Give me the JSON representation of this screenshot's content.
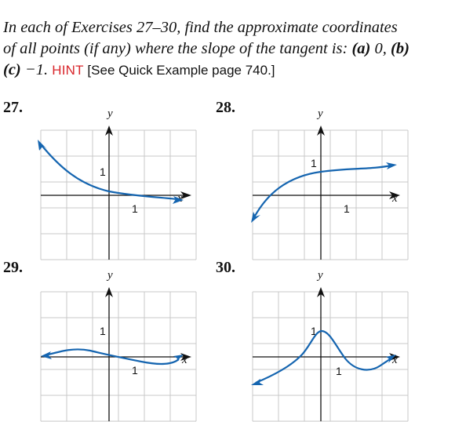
{
  "intro": {
    "line1": "In each of Exercises 27–30, find the approximate coordinates",
    "line2_prefix": "of all points (if any) where the slope of the tangent is: ",
    "part_a": "(a)",
    "value_a": " 0, ",
    "part_b": "(b)",
    "part_c": "(c)",
    "value_c": " −1. ",
    "hint_label": "HINT",
    "hint_ref": " [See Quick Example page 740.]"
  },
  "axis_labels": {
    "x": "x",
    "y": "y"
  },
  "exercises": [
    {
      "number": "27.",
      "x_tick": "1",
      "y_tick": "1"
    },
    {
      "number": "28.",
      "x_tick": "1",
      "y_tick": "1"
    },
    {
      "number": "29.",
      "x_tick": "1",
      "y_tick": "1"
    },
    {
      "number": "30.",
      "x_tick": "1",
      "y_tick": "1"
    }
  ],
  "colors": {
    "curve": "#1565b0",
    "hint": "#d9262b",
    "grid": "#c8c8c8"
  }
}
